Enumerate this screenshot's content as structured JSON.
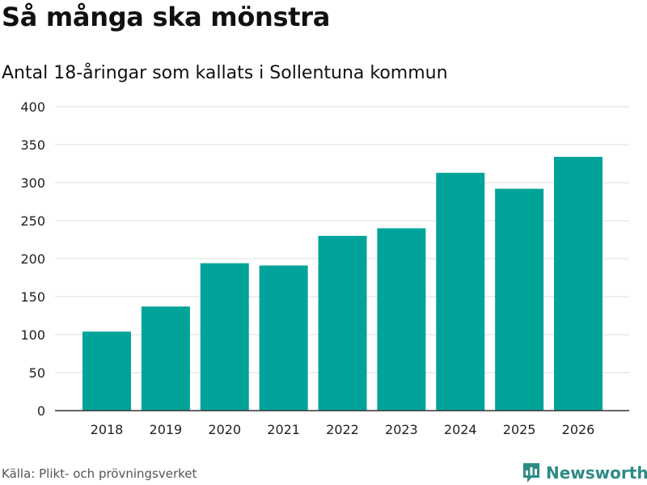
{
  "colors": {
    "bar": "#00a39a",
    "grid": "#dddddd",
    "axis": "#333333",
    "brand": "#2e8b85"
  },
  "header": {
    "title": "Så många ska mönstra",
    "subtitle": "Antal 18-åringar som kallats i Sollentuna kommun"
  },
  "footer": {
    "source": "Källa: Plikt- och prövningsverket",
    "brand_name": "Newsworthy",
    "brand_icon": "newsworthy-logo-icon"
  },
  "chart_data": {
    "type": "bar",
    "title": "Så många ska mönstra",
    "subtitle": "Antal 18-åringar som kallats i Sollentuna kommun",
    "xlabel": "",
    "ylabel": "",
    "categories": [
      "2018",
      "2019",
      "2020",
      "2021",
      "2022",
      "2023",
      "2024",
      "2025",
      "2026"
    ],
    "values": [
      104,
      137,
      194,
      191,
      230,
      240,
      313,
      292,
      334
    ],
    "ylim": [
      0,
      400
    ],
    "yticks": [
      0,
      50,
      100,
      150,
      200,
      250,
      300,
      350,
      400
    ],
    "grid": true,
    "legend": "none"
  }
}
